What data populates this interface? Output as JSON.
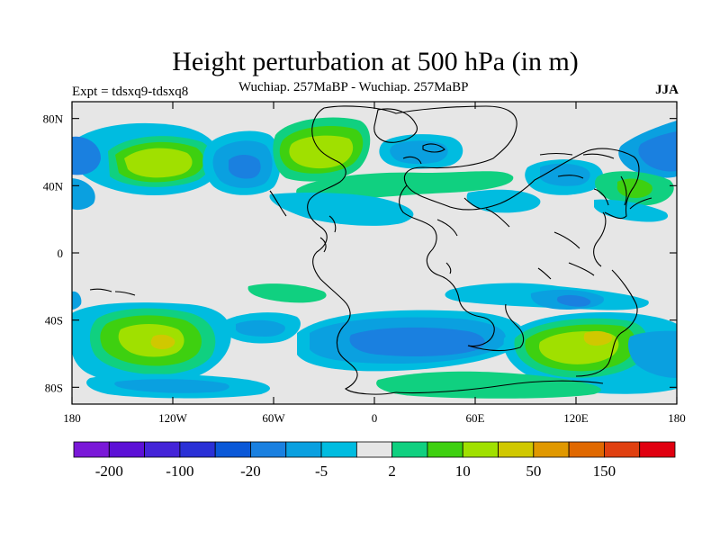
{
  "header": {
    "title": "Height perturbation at 500 hPa (in m)",
    "expt": "Expt = tdsxq9-tdsxq8",
    "subtitle": "Wuchiap. 257MaBP - Wuchiap. 257MaBP",
    "season": "JJA"
  },
  "map": {
    "lon_range": [
      -180,
      180
    ],
    "lat_range": [
      -90,
      90
    ],
    "x_ticks": [
      {
        "lon": -180,
        "label": "180"
      },
      {
        "lon": -120,
        "label": "120W"
      },
      {
        "lon": -60,
        "label": "60W"
      },
      {
        "lon": 0,
        "label": "0"
      },
      {
        "lon": 60,
        "label": "60E"
      },
      {
        "lon": 120,
        "label": "120E"
      },
      {
        "lon": 180,
        "label": "180"
      }
    ],
    "y_ticks": [
      {
        "lat": 80,
        "label": "80N"
      },
      {
        "lat": 40,
        "label": "40N"
      },
      {
        "lat": 0,
        "label": "0"
      },
      {
        "lat": -40,
        "label": "40S"
      },
      {
        "lat": -80,
        "label": "80S"
      }
    ],
    "background_color": "#e6e6e6"
  },
  "colorbar": {
    "colors": [
      "#7a18d8",
      "#5c10d6",
      "#4424d8",
      "#2a30d6",
      "#0a58d8",
      "#1a80e0",
      "#0aa0e0",
      "#00bce0",
      "#e6e6e6",
      "#10d080",
      "#3ed010",
      "#a0e000",
      "#d0c800",
      "#e09800",
      "#e06800",
      "#e04010",
      "#e00010"
    ],
    "labels": [
      {
        "boundary": 1,
        "text": "-200"
      },
      {
        "boundary": 3,
        "text": "-100"
      },
      {
        "boundary": 5,
        "text": "-20"
      },
      {
        "boundary": 7,
        "text": "-5"
      },
      {
        "boundary": 9,
        "text": "2"
      },
      {
        "boundary": 11,
        "text": "10"
      },
      {
        "boundary": 13,
        "text": "50"
      },
      {
        "boundary": 15,
        "text": "150"
      }
    ]
  }
}
